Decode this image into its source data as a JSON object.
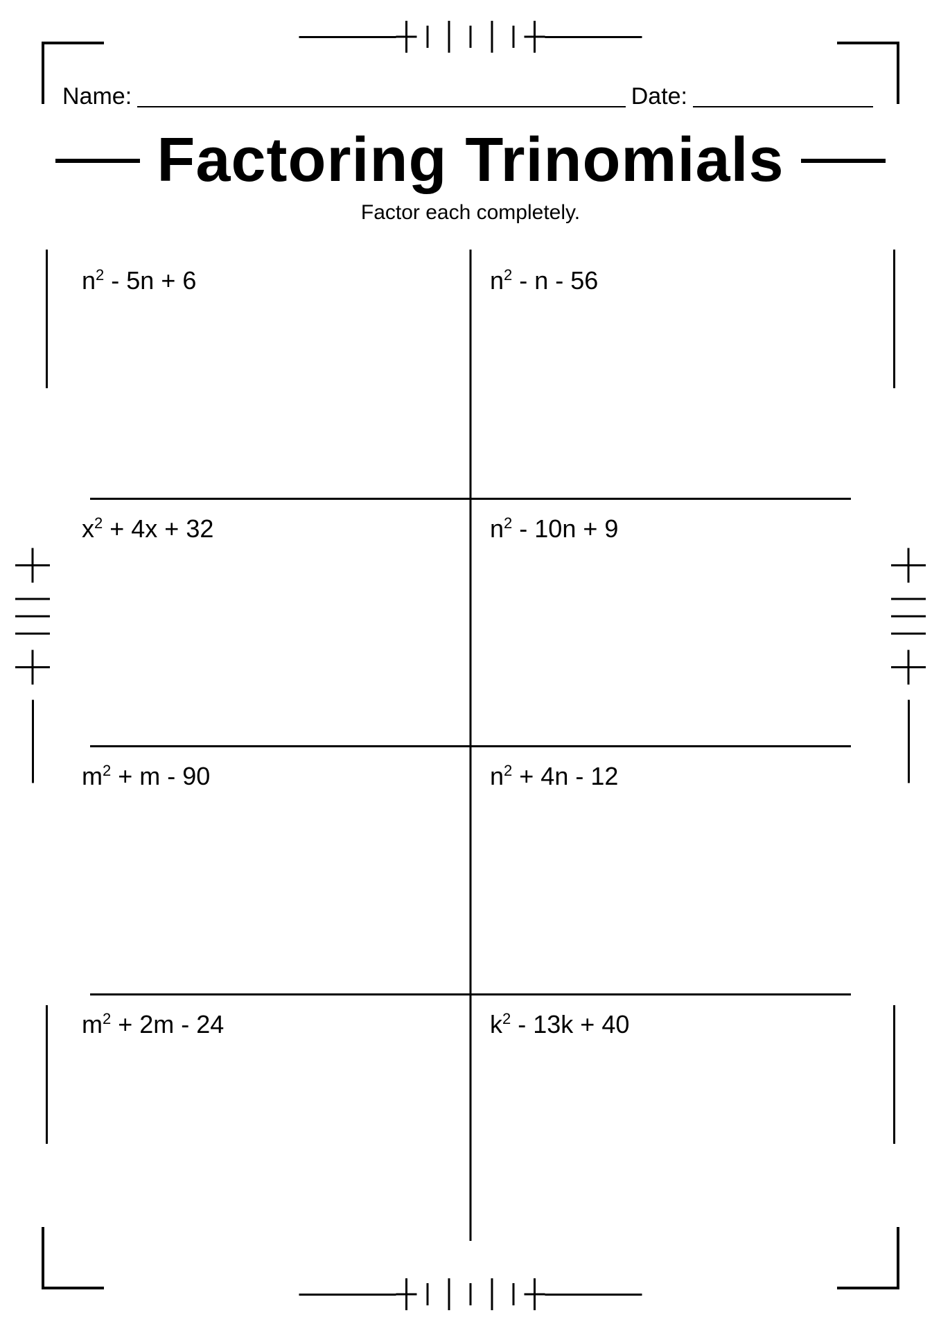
{
  "header": {
    "name_label": "Name:",
    "date_label": "Date:",
    "title": "Factoring Trinomials",
    "subtitle": "Factor each completely."
  },
  "style": {
    "text_color": "#000000",
    "bg_color": "#ffffff",
    "title_font": "Impact",
    "body_font": "Comic Sans MS",
    "title_fontsize": 90,
    "field_fontsize": 34,
    "subtitle_fontsize": 30,
    "problem_fontsize": 36,
    "line_weight": 3
  },
  "grid": {
    "rows": 4,
    "cols": 2,
    "problems": [
      {
        "var": "n",
        "b": "- 5n",
        "c": "+ 6"
      },
      {
        "var": "n",
        "b": "- n",
        "c": "- 56"
      },
      {
        "var": "x",
        "b": "+ 4x",
        "c": "+ 32"
      },
      {
        "var": "n",
        "b": "- 10n",
        "c": "+ 9"
      },
      {
        "var": "m",
        "b": "+ m",
        "c": "- 90"
      },
      {
        "var": "n",
        "b": "+ 4n",
        "c": "- 12"
      },
      {
        "var": "m",
        "b": "+ 2m",
        "c": "- 24"
      },
      {
        "var": "k",
        "b": "- 13k",
        "c": "+ 40"
      }
    ]
  }
}
